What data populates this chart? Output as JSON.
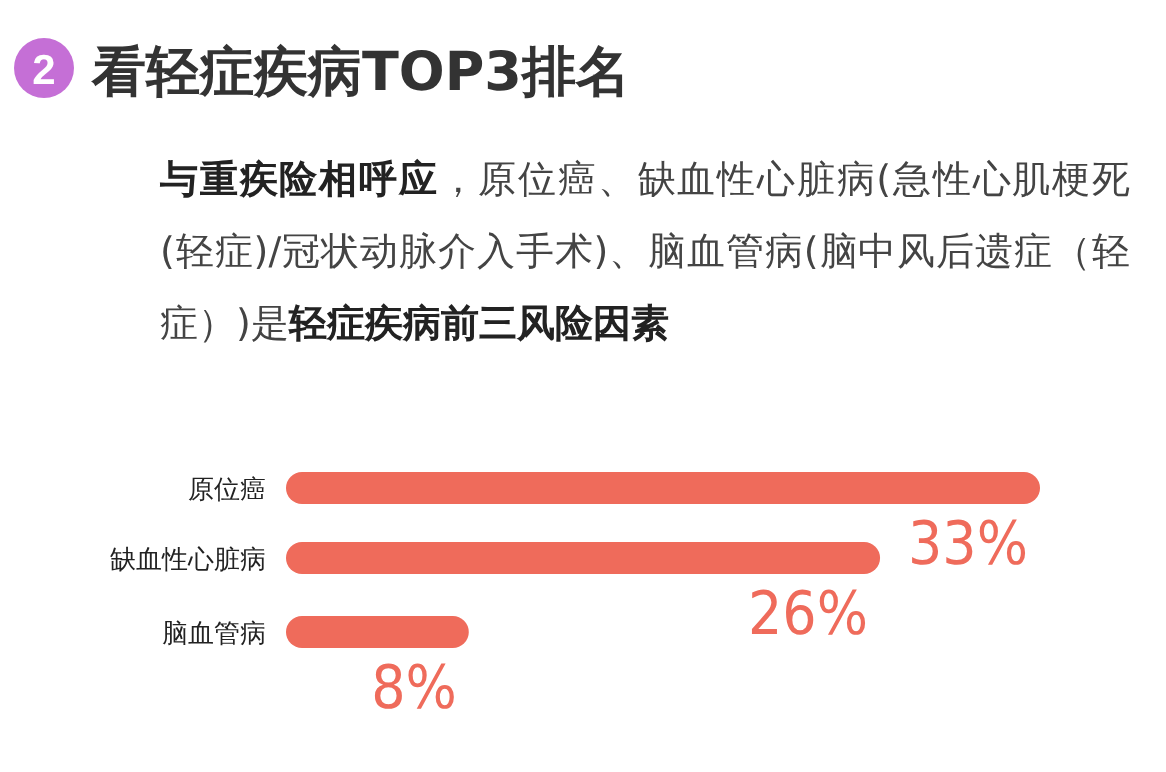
{
  "chart_data": {
    "type": "bar",
    "orientation": "horizontal",
    "title": "看轻症疾病TOP3排名",
    "subtitle": "**与重疾险相呼应**，原位癌、缺血性心脏病(急性心肌梗死(轻症)/冠状动脉介入手术)、脑血管病(脑中风后遗症（轻症）)是**轻症疾病前三风险因素**",
    "annotations": [
      "2"
    ],
    "categories": [
      "原位癌",
      "缺血性心脏病",
      "脑血管病"
    ],
    "values": [
      33,
      26,
      8
    ],
    "value_labels": [
      "33%",
      "26%",
      "8%"
    ],
    "color": "#ef6b5b"
  }
}
